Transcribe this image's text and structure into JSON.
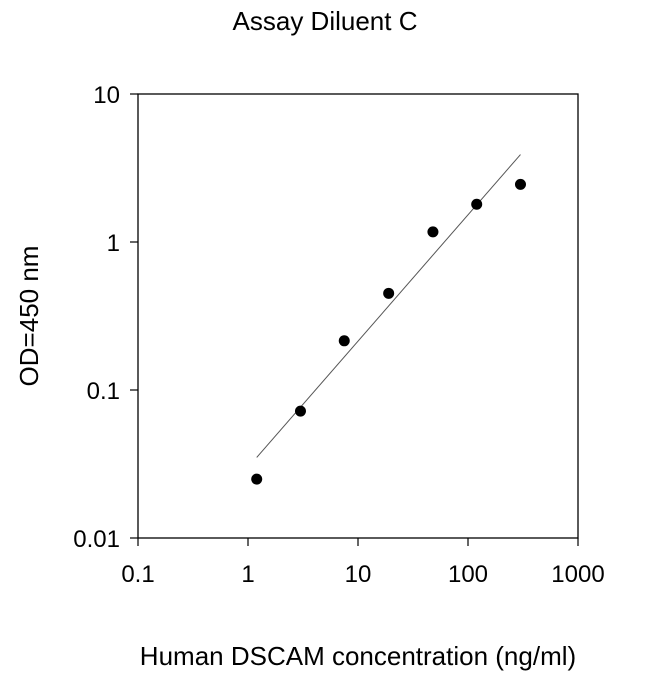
{
  "chart_data": {
    "type": "scatter",
    "title": "Assay Diluent C",
    "xlabel": "Human DSCAM concentration (ng/ml)",
    "ylabel": "OD=450 nm",
    "xscale": "log",
    "yscale": "log",
    "xlim": [
      0.1,
      1000
    ],
    "ylim": [
      0.01,
      10
    ],
    "x_tick_labels": [
      "0.1",
      "1",
      "10",
      "100",
      "1000"
    ],
    "x_tick_values": [
      0.1,
      1,
      10,
      100,
      1000
    ],
    "y_tick_labels": [
      "0.01",
      "0.1",
      "1",
      "10"
    ],
    "y_tick_values": [
      0.01,
      0.1,
      1,
      10
    ],
    "grid": false,
    "legend": "none",
    "series": [
      {
        "x": [
          1.2,
          3.0,
          7.5,
          19,
          48,
          120,
          300
        ],
        "y": [
          0.025,
          0.072,
          0.215,
          0.45,
          1.17,
          1.8,
          2.45
        ]
      }
    ],
    "fit_line": {
      "x": [
        1.2,
        300
      ],
      "y": [
        0.035,
        3.9
      ]
    },
    "marker_color": "#000000",
    "line_color": "#555555"
  }
}
